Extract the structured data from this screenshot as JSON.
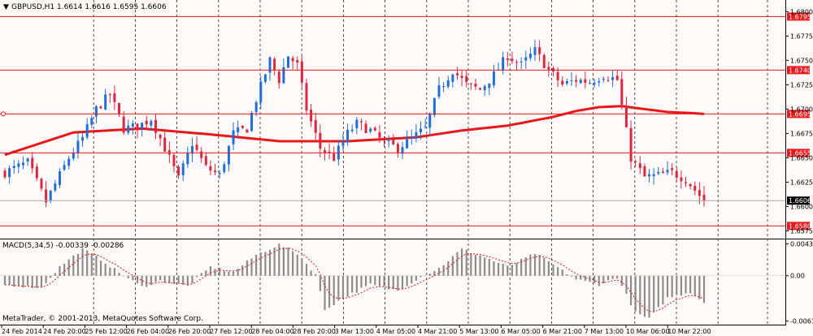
{
  "header": {
    "symbol_line": "GBPUSD,H1  1.6614 1.6616 1.6595 1.6606"
  },
  "macd_header": {
    "text": "MACD(5,34,5) -0.00339 -0.00286"
  },
  "copyright": "MetaTrader, © 2001-2013, MetaQuotes Software Corp.",
  "colors": {
    "background": "#fffafa",
    "bull_candle": "#1e6fd9",
    "bear_candle": "#e0263c",
    "moving_average": "#e8181a",
    "level_line": "#e8181a",
    "grid": "#222222",
    "macd_histogram": "#8c8c8c",
    "macd_signal": "#e8181a"
  },
  "chart_data": {
    "type": "candlestick",
    "symbol": "GBPUSD",
    "timeframe": "H1",
    "last_quote": {
      "open": 1.6614,
      "high": 1.6616,
      "low": 1.6595,
      "close": 1.6606
    },
    "price_axis": {
      "ylim": [
        1.6567,
        1.6812
      ],
      "ticks": [
        "1.6800",
        "1.6775",
        "1.6750",
        "1.6725",
        "1.6700",
        "1.6675",
        "1.6650",
        "1.6625",
        "1.6600",
        "1.6575"
      ],
      "tick_values": [
        1.68,
        1.6775,
        1.675,
        1.6725,
        1.67,
        1.6675,
        1.665,
        1.6625,
        1.66,
        1.6575
      ]
    },
    "time_axis": {
      "labels": [
        "24 Feb 2014",
        "24 Feb 20:00",
        "25 Feb 12:00",
        "26 Feb 04:00",
        "26 Feb 20:00",
        "27 Feb 12:00",
        "28 Feb 04:00",
        "28 Feb 20:00",
        "3 Mar 13:00",
        "4 Mar 05:00",
        "4 Mar 21:00",
        "5 Mar 13:00",
        "6 Mar 05:00",
        "6 Mar 21:00",
        "7 Mar 13:00",
        "10 Mar 06:00",
        "10 Mar 22:00"
      ],
      "bar_count": 154
    },
    "levels": [
      {
        "label": "1.6795",
        "value": 1.6795
      },
      {
        "label": "1.6740",
        "value": 1.674
      },
      {
        "label": "1.6695",
        "value": 1.6695
      },
      {
        "label": "1.6655",
        "value": 1.6655
      },
      {
        "label": "1.6580",
        "value": 1.658
      }
    ],
    "current_price": {
      "label": "1.6606",
      "value": 1.6606
    },
    "close_path": {
      "anchor_bars": [
        0,
        5,
        9,
        14,
        17,
        20,
        23,
        26,
        29,
        32,
        35,
        38,
        41,
        44,
        47,
        50,
        53,
        55,
        58,
        60,
        62,
        64,
        66,
        69,
        72,
        75,
        77,
        80,
        83,
        86,
        89,
        92,
        95,
        98,
        101,
        104,
        107,
        110,
        113,
        116,
        119,
        122,
        125,
        128,
        131,
        134,
        137,
        140,
        143,
        146,
        149,
        153
      ],
      "anchor_closes": [
        1.6635,
        1.6645,
        1.6605,
        1.665,
        1.667,
        1.67,
        1.6715,
        1.668,
        1.6682,
        1.669,
        1.666,
        1.6628,
        1.6665,
        1.664,
        1.6632,
        1.6675,
        1.668,
        1.671,
        1.675,
        1.673,
        1.6755,
        1.6745,
        1.67,
        1.666,
        1.665,
        1.6675,
        1.6685,
        1.6678,
        1.6665,
        1.666,
        1.667,
        1.668,
        1.672,
        1.674,
        1.6725,
        1.672,
        1.6735,
        1.6755,
        1.6745,
        1.676,
        1.674,
        1.6725,
        1.673,
        1.6728,
        1.6735,
        1.673,
        1.665,
        1.663,
        1.6632,
        1.6635,
        1.6628,
        1.6606
      ]
    },
    "moving_average": {
      "anchor_bars": [
        0,
        15,
        30,
        45,
        60,
        75,
        90,
        100,
        110,
        120,
        125,
        130,
        135,
        140,
        145,
        150,
        153
      ],
      "values": [
        1.6653,
        1.6676,
        1.668,
        1.6674,
        1.6667,
        1.6667,
        1.6671,
        1.6678,
        1.6683,
        1.6692,
        1.6698,
        1.6702,
        1.6703,
        1.67,
        1.6697,
        1.6696,
        1.6695
      ]
    },
    "macd": {
      "params": "5,34,5",
      "main": -0.00339,
      "signal": -0.00286,
      "axis_ticks": [
        "0.00431",
        "0.00",
        "-0.00612"
      ],
      "axis_values": [
        0.00431,
        0.0,
        -0.00612
      ],
      "ylim": [
        -0.0066,
        0.0049
      ],
      "hist_anchor_bars": [
        0,
        8,
        12,
        17,
        21,
        25,
        30,
        34,
        40,
        45,
        50,
        55,
        60,
        64,
        68,
        70,
        74,
        80,
        86,
        90,
        95,
        100,
        105,
        110,
        116,
        120,
        125,
        130,
        134,
        138,
        141,
        145,
        150,
        153
      ],
      "hist_anchor_values": [
        -0.0012,
        -0.0016,
        0.0012,
        0.0036,
        0.0022,
        0.0004,
        -0.0015,
        -0.0007,
        -0.0014,
        0.0012,
        0.0005,
        0.0028,
        0.0042,
        0.003,
        0.0002,
        -0.0046,
        -0.003,
        -0.0012,
        -0.002,
        -0.0005,
        0.001,
        0.0036,
        0.0025,
        0.0012,
        0.003,
        0.0015,
        -0.0005,
        -0.0012,
        -0.0002,
        -0.005,
        -0.0058,
        -0.003,
        -0.0022,
        -0.0036
      ]
    }
  }
}
